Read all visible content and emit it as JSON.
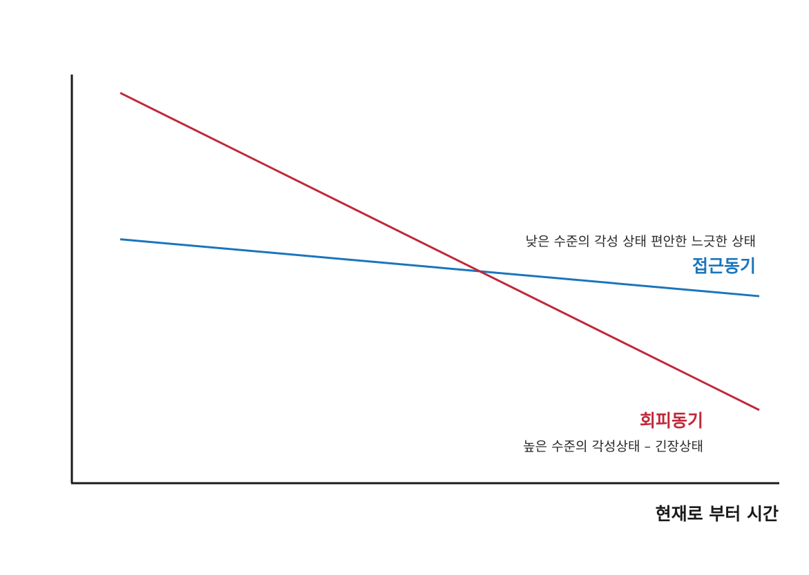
{
  "chart_data": {
    "type": "line",
    "title": "",
    "xlabel": "현재로 부터 시간",
    "ylabel": "",
    "x": [
      0,
      1
    ],
    "xlim": [
      0,
      1
    ],
    "ylim": [
      0,
      1
    ],
    "grid": false,
    "series": [
      {
        "name": "접근동기",
        "description": "낮은 수준의 각성 상태 편안한 느긋한 상태",
        "color": "#1a75bc",
        "values": [
          0.6,
          0.46
        ]
      },
      {
        "name": "회피동기",
        "description": "높은 수준의 각성상태 – 긴장상태",
        "color": "#c0283a",
        "values": [
          0.96,
          0.18
        ]
      }
    ]
  }
}
